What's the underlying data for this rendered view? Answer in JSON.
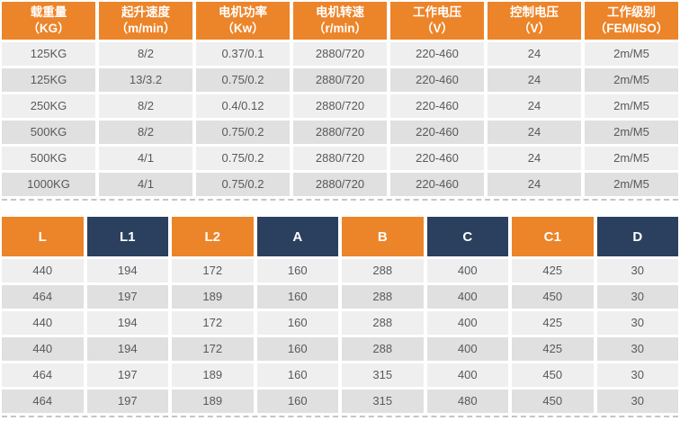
{
  "colors": {
    "orange": "#ec8429",
    "navy": "#2b405e",
    "row_light": "#efeff0",
    "row_dark": "#e0e0e1",
    "cell_text": "#58595b",
    "header_text": "#ffffff"
  },
  "spec_table": {
    "headers": [
      {
        "title": "载重量",
        "unit": "（KG）"
      },
      {
        "title": "起升速度",
        "unit": "（m/min）"
      },
      {
        "title": "电机功率",
        "unit": "（Kw）"
      },
      {
        "title": "电机转速",
        "unit": "（r/min）"
      },
      {
        "title": "工作电压",
        "unit": "（V）"
      },
      {
        "title": "控制电压",
        "unit": "（V）"
      },
      {
        "title": "工作级别",
        "unit": "（FEM/ISO）"
      }
    ],
    "rows": [
      [
        "125KG",
        "8/2",
        "0.37/0.1",
        "2880/720",
        "220-460",
        "24",
        "2m/M5"
      ],
      [
        "125KG",
        "13/3.2",
        "0.75/0.2",
        "2880/720",
        "220-460",
        "24",
        "2m/M5"
      ],
      [
        "250KG",
        "8/2",
        "0.4/0.12",
        "2880/720",
        "220-460",
        "24",
        "2m/M5"
      ],
      [
        "500KG",
        "8/2",
        "0.75/0.2",
        "2880/720",
        "220-460",
        "24",
        "2m/M5"
      ],
      [
        "500KG",
        "4/1",
        "0.75/0.2",
        "2880/720",
        "220-460",
        "24",
        "2m/M5"
      ],
      [
        "1000KG",
        "4/1",
        "0.75/0.2",
        "2880/720",
        "220-460",
        "24",
        "2m/M5"
      ]
    ]
  },
  "dimension_table": {
    "headers": [
      {
        "label": "L",
        "color": "orange"
      },
      {
        "label": "L1",
        "color": "navy"
      },
      {
        "label": "L2",
        "color": "orange"
      },
      {
        "label": "A",
        "color": "navy"
      },
      {
        "label": "B",
        "color": "orange"
      },
      {
        "label": "C",
        "color": "navy"
      },
      {
        "label": "C1",
        "color": "orange"
      },
      {
        "label": "D",
        "color": "navy"
      }
    ],
    "rows": [
      [
        "440",
        "194",
        "172",
        "160",
        "288",
        "400",
        "425",
        "30"
      ],
      [
        "464",
        "197",
        "189",
        "160",
        "288",
        "400",
        "450",
        "30"
      ],
      [
        "440",
        "194",
        "172",
        "160",
        "288",
        "400",
        "425",
        "30"
      ],
      [
        "440",
        "194",
        "172",
        "160",
        "288",
        "400",
        "425",
        "30"
      ],
      [
        "464",
        "197",
        "189",
        "160",
        "315",
        "400",
        "450",
        "30"
      ],
      [
        "464",
        "197",
        "189",
        "160",
        "315",
        "480",
        "450",
        "30"
      ]
    ]
  }
}
